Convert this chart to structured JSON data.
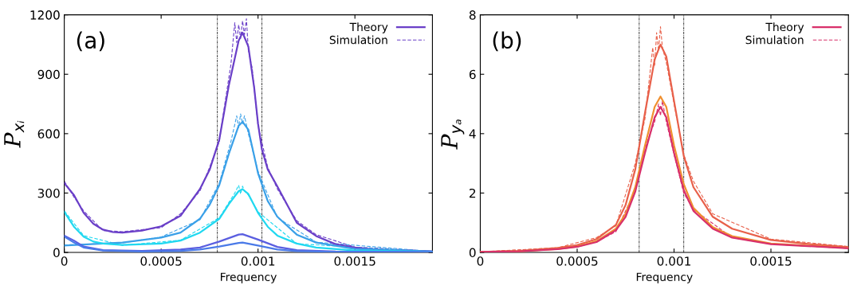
{
  "chart_data": [
    {
      "type": "line",
      "xlabel": "Frequency",
      "ylabel": "P$_{xᵢ}$",
      "annotations": [
        "(a)"
      ],
      "xlim": [
        0,
        0.0019
      ],
      "xticks": [
        0,
        0.0005,
        0.001,
        0.0015
      ],
      "ylim": [
        0,
        1200
      ],
      "yticks": [
        0,
        300,
        600,
        900,
        1200
      ],
      "grid": false,
      "legend": "top right",
      "ref_lines": [
        {
          "axis": "x",
          "value": 0.00079,
          "color": "#333333",
          "line_style": "dashed"
        },
        {
          "axis": "x",
          "value": 0.00102,
          "color": "#333333",
          "line_style": "dashed"
        }
      ],
      "series": [
        {
          "name": "Theory",
          "color": "#6a3fc8",
          "line_style": "solid",
          "x": [
            0,
            5e-05,
            0.0001,
            0.00015,
            0.0002,
            0.00025,
            0.0003,
            0.0004,
            0.0005,
            0.0006,
            0.0007,
            0.00075,
            0.0008,
            0.00085,
            0.0009,
            0.00092,
            0.00095,
            0.00098,
            0.001,
            0.00102,
            0.00105,
            0.0011,
            0.0012,
            0.0013,
            0.0014,
            0.0015,
            0.0016,
            0.0017,
            0.0019
          ],
          "values": [
            350,
            290,
            200,
            145,
            115,
            103,
            100,
            110,
            132,
            185,
            320,
            417,
            570,
            847,
            1070,
            1110,
            1040,
            833,
            650,
            520,
            420,
            333,
            150,
            83,
            42,
            25,
            16,
            11,
            6
          ]
        },
        {
          "name": "Simulation",
          "color": "#6a3fc8",
          "line_style": "dashed",
          "x": [
            0,
            5e-05,
            0.0001,
            0.0002,
            0.0003,
            0.0004,
            0.0005,
            0.0006,
            0.0007,
            0.00075,
            0.0008,
            0.00083,
            0.00086,
            0.00088,
            0.00089,
            0.0009,
            0.00091,
            0.00092,
            0.00093,
            0.00094,
            0.00095,
            0.00097,
            0.001,
            0.00105,
            0.0011,
            0.0012,
            0.0013,
            0.0015,
            0.0019
          ],
          "values": [
            360,
            280,
            210,
            110,
            105,
            115,
            125,
            195,
            310,
            430,
            560,
            760,
            950,
            1160,
            1060,
            1150,
            1080,
            1170,
            1100,
            1180,
            1020,
            930,
            640,
            430,
            320,
            160,
            90,
            27,
            6
          ]
        },
        {
          "color": "#3aa0e8",
          "line_style": "solid",
          "x": [
            0,
            0.0003,
            0.0005,
            0.0006,
            0.0007,
            0.00075,
            0.0008,
            0.00085,
            0.0009,
            0.00092,
            0.00095,
            0.001,
            0.00105,
            0.0011,
            0.0012,
            0.0013,
            0.0015,
            0.0019
          ],
          "values": [
            35,
            50,
            75,
            100,
            170,
            240,
            340,
            500,
            640,
            660,
            620,
            400,
            260,
            180,
            90,
            50,
            18,
            5
          ]
        },
        {
          "color": "#3aa0e8",
          "line_style": "dashed",
          "x": [
            0,
            0.0003,
            0.0005,
            0.0007,
            0.0008,
            0.00086,
            0.00089,
            0.0009,
            0.00091,
            0.00092,
            0.00093,
            0.00095,
            0.001,
            0.0011,
            0.0013,
            0.0019
          ],
          "values": [
            38,
            48,
            78,
            165,
            350,
            560,
            690,
            630,
            700,
            650,
            690,
            600,
            410,
            175,
            52,
            5
          ]
        },
        {
          "color": "#20d8f0",
          "line_style": "solid",
          "x": [
            0,
            5e-05,
            0.0001,
            0.00015,
            0.0002,
            0.0003,
            0.0005,
            0.0006,
            0.0007,
            0.0008,
            0.00085,
            0.0009,
            0.00092,
            0.00095,
            0.001,
            0.00105,
            0.0011,
            0.0012,
            0.0013,
            0.0015,
            0.0019
          ],
          "values": [
            205,
            130,
            80,
            55,
            45,
            38,
            45,
            60,
            100,
            170,
            245,
            310,
            320,
            295,
            200,
            130,
            85,
            45,
            25,
            10,
            3
          ]
        },
        {
          "color": "#20d8f0",
          "line_style": "dashed",
          "x": [
            0,
            0.0001,
            0.0003,
            0.0006,
            0.0008,
            0.00088,
            0.0009,
            0.00091,
            0.00092,
            0.00093,
            0.00095,
            0.001,
            0.0012,
            0.0019
          ],
          "values": [
            210,
            85,
            36,
            62,
            175,
            300,
            340,
            295,
            335,
            310,
            290,
            205,
            44,
            3
          ]
        },
        {
          "color": "#5a5ee0",
          "line_style": "solid",
          "x": [
            0,
            5e-05,
            0.0001,
            0.0002,
            0.0004,
            0.0006,
            0.0007,
            0.0008,
            0.0009,
            0.00092,
            0.001,
            0.0011,
            0.0012,
            0.0014,
            0.0019
          ],
          "values": [
            85,
            60,
            30,
            12,
            8,
            15,
            25,
            55,
            90,
            92,
            65,
            28,
            12,
            5,
            2
          ]
        },
        {
          "color": "#4a7ae8",
          "line_style": "solid",
          "x": [
            0,
            5e-05,
            0.0001,
            0.0002,
            0.0004,
            0.0006,
            0.0007,
            0.0008,
            0.0009,
            0.00092,
            0.001,
            0.0011,
            0.0012,
            0.0014,
            0.0019
          ],
          "values": [
            80,
            50,
            25,
            10,
            5,
            8,
            15,
            30,
            48,
            50,
            35,
            15,
            7,
            3,
            1
          ]
        }
      ]
    },
    {
      "type": "line",
      "xlabel": "Frequency",
      "ylabel": "P$_{yₐ}$",
      "annotations": [
        "(b)"
      ],
      "xlim": [
        0,
        0.0019
      ],
      "xticks": [
        0,
        0.0005,
        0.001,
        0.0015
      ],
      "ylim": [
        0,
        8
      ],
      "yticks": [
        0,
        2,
        4,
        6,
        8
      ],
      "grid": false,
      "legend": "top right",
      "ref_lines": [
        {
          "axis": "x",
          "value": 0.00082,
          "color": "#333333",
          "line_style": "dashed"
        },
        {
          "axis": "x",
          "value": 0.00105,
          "color": "#333333",
          "line_style": "dashed"
        }
      ],
      "series": [
        {
          "color": "#e8604a",
          "line_style": "solid",
          "x": [
            0,
            0.0002,
            0.0004,
            0.0005,
            0.0006,
            0.0007,
            0.00075,
            0.0008,
            0.00085,
            0.0009,
            0.00093,
            0.00096,
            0.001,
            0.00105,
            0.0011,
            0.0012,
            0.0013,
            0.0015,
            0.0017,
            0.0019
          ],
          "values": [
            0.02,
            0.05,
            0.15,
            0.25,
            0.45,
            0.93,
            1.6,
            2.8,
            4.7,
            6.5,
            7.0,
            6.6,
            5.1,
            3.25,
            2.2,
            1.2,
            0.8,
            0.42,
            0.28,
            0.18
          ]
        },
        {
          "color": "#e8604a",
          "line_style": "dashed",
          "x": [
            0,
            0.0004,
            0.0006,
            0.0007,
            0.0008,
            0.00085,
            0.00089,
            0.0009,
            0.00091,
            0.00092,
            0.00093,
            0.00094,
            0.00096,
            0.001,
            0.00105,
            0.0011,
            0.0012,
            0.0015,
            0.0019
          ],
          "values": [
            0.02,
            0.16,
            0.5,
            0.9,
            3.0,
            4.5,
            6.9,
            6.3,
            7.4,
            6.8,
            7.6,
            6.9,
            6.4,
            5.0,
            3.3,
            2.4,
            1.3,
            0.45,
            0.2
          ]
        },
        {
          "color": "#f09030",
          "line_style": "solid",
          "x": [
            0,
            0.0002,
            0.0004,
            0.0005,
            0.0006,
            0.0007,
            0.00075,
            0.0008,
            0.00085,
            0.0009,
            0.00093,
            0.00096,
            0.001,
            0.00105,
            0.0011,
            0.0012,
            0.0013,
            0.0015,
            0.0019
          ],
          "values": [
            0.02,
            0.04,
            0.12,
            0.2,
            0.38,
            0.8,
            1.3,
            2.2,
            3.6,
            4.9,
            5.25,
            4.9,
            3.6,
            2.3,
            1.5,
            0.85,
            0.55,
            0.3,
            0.15
          ]
        },
        {
          "name": "Theory",
          "color": "#d8306a",
          "line_style": "solid",
          "x": [
            0,
            0.0002,
            0.0004,
            0.0005,
            0.0006,
            0.0007,
            0.00075,
            0.0008,
            0.00085,
            0.0009,
            0.00093,
            0.00096,
            0.001,
            0.00105,
            0.0011,
            0.0012,
            0.0013,
            0.0015,
            0.0019
          ],
          "values": [
            0.02,
            0.04,
            0.11,
            0.19,
            0.35,
            0.75,
            1.2,
            2.05,
            3.35,
            4.55,
            4.9,
            4.55,
            3.35,
            2.1,
            1.4,
            0.8,
            0.5,
            0.28,
            0.14
          ]
        },
        {
          "name": "Simulation",
          "color": "#d8306a",
          "line_style": "dashed",
          "x": [
            0,
            0.0004,
            0.0006,
            0.0007,
            0.0008,
            0.00086,
            0.0009,
            0.00092,
            0.00093,
            0.00094,
            0.00096,
            0.001,
            0.00105,
            0.0011,
            0.0013,
            0.0015,
            0.0019
          ],
          "values": [
            0.02,
            0.12,
            0.36,
            0.7,
            2.1,
            3.7,
            4.4,
            5.0,
            4.6,
            5.1,
            4.4,
            3.3,
            2.0,
            1.45,
            0.5,
            0.28,
            0.14
          ]
        }
      ]
    }
  ]
}
